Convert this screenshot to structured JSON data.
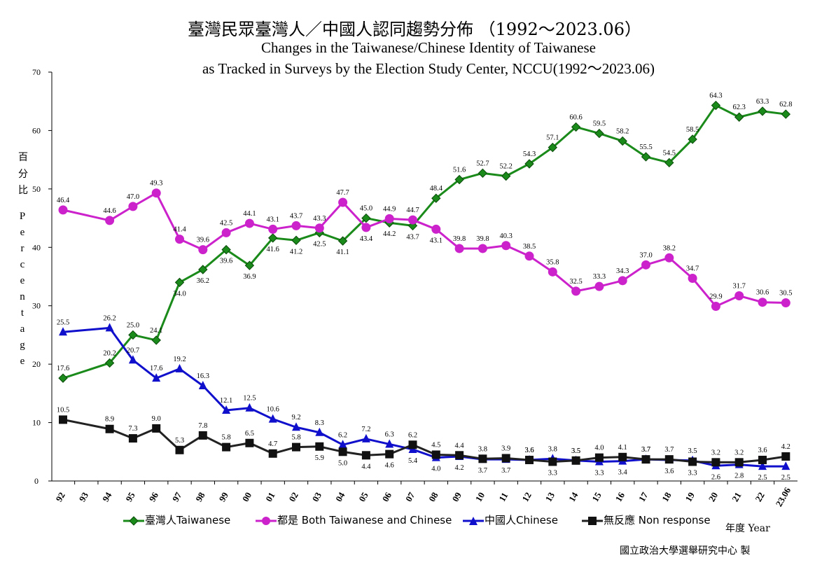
{
  "title_zh": "臺灣民眾臺灣人／中國人認同趨勢分佈 （1992～2023.06）",
  "title_en_1": "Changes in the Taiwanese/Chinese Identity of Taiwanese",
  "title_en_2": "as Tracked in Surveys by the Election Study Center, NCCU(1992～2023.06)",
  "ylabel_zh": "百\n分\n比",
  "ylabel_en": "P\ne\nr\nc\ne\nn\nt\na\ng\ne",
  "xlabel": "年度 Year",
  "credit": "國立政治大學選舉研究中心 製",
  "chart_data": {
    "type": "line",
    "categories": [
      "92",
      "93",
      "94",
      "95",
      "96",
      "97",
      "98",
      "99",
      "00",
      "01",
      "02",
      "03",
      "04",
      "05",
      "06",
      "07",
      "08",
      "09",
      "10",
      "11",
      "12",
      "13",
      "14",
      "15",
      "16",
      "17",
      "18",
      "19",
      "20",
      "21",
      "22",
      "23.06"
    ],
    "ylim": [
      0,
      70
    ],
    "yticks": [
      0,
      10,
      20,
      30,
      40,
      50,
      60,
      70
    ],
    "grid": false,
    "legend_position": "bottom",
    "series": [
      {
        "name": "臺灣人Taiwanese",
        "color": "#1a8a1a",
        "marker": "diamond",
        "values": [
          17.6,
          null,
          20.2,
          25.0,
          24.1,
          34.0,
          36.2,
          39.6,
          36.9,
          41.6,
          41.2,
          42.5,
          41.1,
          45.0,
          44.2,
          43.7,
          48.4,
          51.6,
          52.7,
          52.2,
          54.3,
          57.1,
          60.6,
          59.5,
          58.2,
          55.5,
          54.5,
          58.5,
          64.3,
          62.3,
          63.3,
          62.8
        ]
      },
      {
        "name": "都是 Both Taiwanese and Chinese",
        "color": "#cc22cc",
        "marker": "circle",
        "values": [
          46.4,
          null,
          44.6,
          47.0,
          49.3,
          41.4,
          39.6,
          42.5,
          44.1,
          43.1,
          43.7,
          43.3,
          47.7,
          43.4,
          44.9,
          44.7,
          43.1,
          39.8,
          39.8,
          40.3,
          38.5,
          35.8,
          32.5,
          33.3,
          34.3,
          37.0,
          38.2,
          34.7,
          29.9,
          31.7,
          30.6,
          30.5
        ]
      },
      {
        "name": "中國人Chinese",
        "color": "#1010cc",
        "marker": "triangle",
        "values": [
          25.5,
          null,
          26.2,
          20.7,
          17.6,
          19.2,
          16.3,
          12.1,
          12.5,
          10.6,
          9.2,
          8.3,
          6.2,
          7.2,
          6.3,
          5.4,
          4.0,
          4.2,
          3.7,
          3.7,
          3.6,
          3.8,
          3.5,
          3.3,
          3.4,
          3.7,
          3.6,
          3.5,
          2.6,
          2.8,
          2.5,
          2.5
        ]
      },
      {
        "name": "無反應 Non response",
        "color": "#222222",
        "marker": "square",
        "values": [
          10.5,
          null,
          8.9,
          7.3,
          9.0,
          5.3,
          7.8,
          5.8,
          6.5,
          4.7,
          5.8,
          5.9,
          5.0,
          4.4,
          4.6,
          6.2,
          4.5,
          4.4,
          3.8,
          3.9,
          3.6,
          3.3,
          3.5,
          4.0,
          4.1,
          3.7,
          3.7,
          3.3,
          3.2,
          3.2,
          3.6,
          4.2
        ]
      }
    ]
  }
}
